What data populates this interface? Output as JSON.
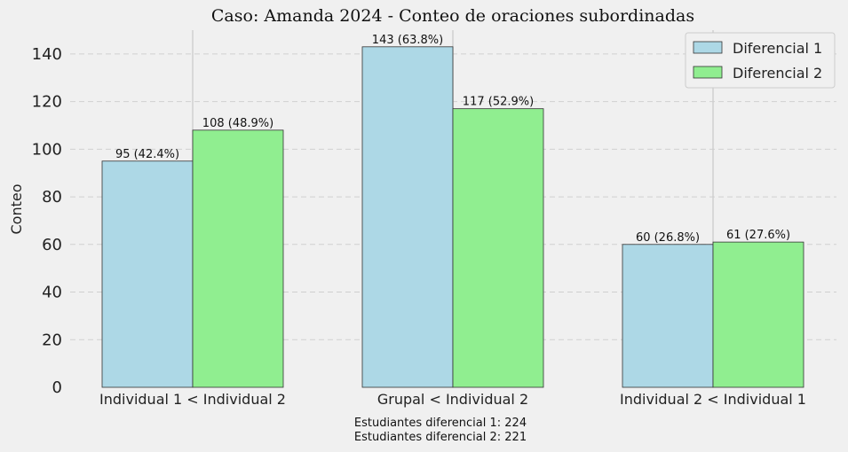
{
  "chart_data": {
    "type": "bar",
    "title": "Caso: Amanda 2024 - Conteo de oraciones subordinadas",
    "xlabel": "",
    "ylabel": "Conteo",
    "ylim": [
      0,
      150
    ],
    "yticks": [
      0,
      20,
      40,
      60,
      80,
      100,
      120,
      140
    ],
    "categories": [
      "Individual 1 < Individual 2",
      "Grupal < Individual 2",
      "Individual 2 < Individual 1"
    ],
    "series": [
      {
        "name": "Diferencial 1",
        "color": "#add8e6",
        "values": [
          95,
          143,
          60
        ],
        "labels": [
          "95 (42.4%)",
          "143 (63.8%)",
          "60 (26.8%)"
        ]
      },
      {
        "name": "Diferencial 2",
        "color": "#90ee90",
        "values": [
          108,
          117,
          61
        ],
        "labels": [
          "108 (48.9%)",
          "117 (52.9%)",
          "61 (27.6%)"
        ]
      }
    ],
    "legend": "top-right",
    "grid": "horizontal-dashed",
    "notes": [
      "Estudiantes diferencial 1: 224",
      "Estudiantes diferencial 2: 221"
    ]
  }
}
